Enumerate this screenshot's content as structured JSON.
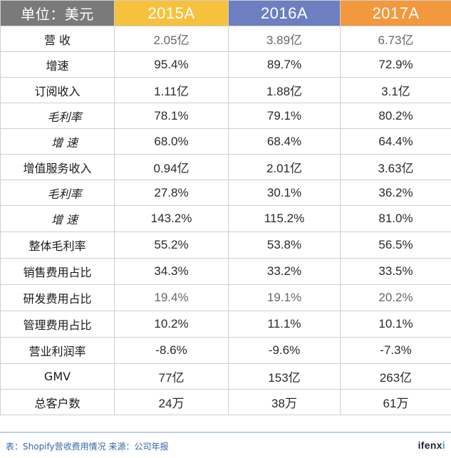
{
  "table": {
    "header": {
      "unit_label": "单位：美元",
      "years": [
        "2015A",
        "2016A",
        "2017A"
      ]
    },
    "rows": [
      {
        "label": "营 收",
        "sub": false,
        "values": [
          "2.05亿",
          "3.89亿",
          "6.73亿"
        ]
      },
      {
        "label": "增速",
        "sub": false,
        "values": [
          "95.4%",
          "89.7%",
          "72.9%"
        ]
      },
      {
        "label": "订阅收入",
        "sub": false,
        "values": [
          "1.11亿",
          "1.88亿",
          "3.1亿"
        ]
      },
      {
        "label": "毛利率",
        "sub": true,
        "values": [
          "78.1%",
          "79.1%",
          "80.2%"
        ]
      },
      {
        "label": "增 速",
        "sub": true,
        "values": [
          "68.0%",
          "68.4%",
          "64.4%"
        ]
      },
      {
        "label": "增值服务收入",
        "sub": false,
        "values": [
          "0.94亿",
          "2.01亿",
          "3.63亿"
        ]
      },
      {
        "label": "毛利率",
        "sub": true,
        "values": [
          "27.8%",
          "30.1%",
          "36.2%"
        ]
      },
      {
        "label": "增 速",
        "sub": true,
        "values": [
          "143.2%",
          "115.2%",
          "81.0%"
        ]
      },
      {
        "label": "整体毛利率",
        "sub": false,
        "values": [
          "55.2%",
          "53.8%",
          "56.5%"
        ]
      },
      {
        "label": "销售费用占比",
        "sub": false,
        "values": [
          "34.3%",
          "33.2%",
          "33.5%"
        ]
      },
      {
        "label": "研发费用占比",
        "sub": false,
        "values": [
          "19.4%",
          "19.1%",
          "20.2%"
        ]
      },
      {
        "label": "管理费用占比",
        "sub": false,
        "values": [
          "10.2%",
          "11.1%",
          "10.1%"
        ]
      },
      {
        "label": "营业利润率",
        "sub": false,
        "values": [
          "-8.6%",
          "-9.6%",
          "-7.3%"
        ]
      },
      {
        "label": "GMV",
        "sub": false,
        "values": [
          "77亿",
          "153亿",
          "263亿"
        ]
      },
      {
        "label": "总客户数",
        "sub": false,
        "values": [
          "24万",
          "38万",
          "61万"
        ]
      }
    ]
  },
  "footer": {
    "source": "表：Shopify营收费用情况 来源：公司年报",
    "logo_main": "ifenx",
    "logo_tail": "i"
  },
  "colors": {
    "unit_header": "#7a7a7a",
    "year_2015": "#f6c23e",
    "year_2016": "#6d7fc1",
    "year_2017": "#f2983d"
  }
}
